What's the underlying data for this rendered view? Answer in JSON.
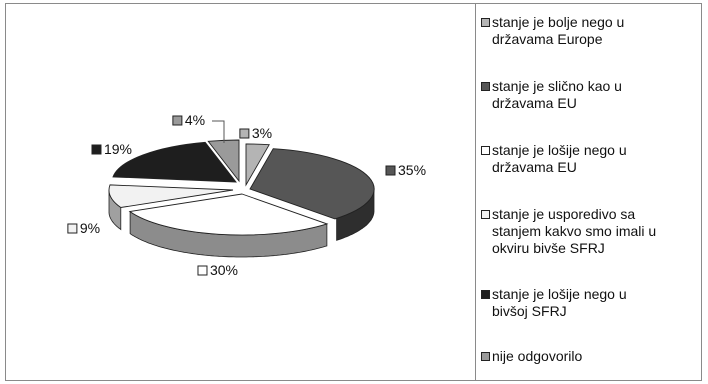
{
  "chart_data": {
    "type": "pie",
    "style": "3d-exploded",
    "legend_position": "right",
    "slices": [
      {
        "label": "stanje je bolje nego u\ndržavama Europe",
        "value": 3,
        "value_label": "3%",
        "color": "#b4b4b4",
        "side": "#8a8a8a"
      },
      {
        "label": "stanje je slično kao u\ndržavama EU",
        "value": 35,
        "value_label": "35%",
        "color": "#565656",
        "side": "#2e2e2e"
      },
      {
        "label": "stanje je lošije nego u\ndržavama  EU",
        "value": 30,
        "value_label": "30%",
        "color": "#ffffff",
        "side": "#8c8c8c"
      },
      {
        "label": "stanje je usporedivo sa\nstanjem kakvo smo imali u\nokviru bivše SFRJ",
        "value": 9,
        "value_label": "9%",
        "color": "#f2f2f2",
        "side": "#a0a0a0"
      },
      {
        "label": "stanje je lošije nego u\nbivšoj SFRJ",
        "value": 19,
        "value_label": "19%",
        "color": "#1e1e1e",
        "side": "#0c0c0c"
      },
      {
        "label": "nije odgovorilo",
        "value": 4,
        "value_label": "4%",
        "color": "#9a9a9a",
        "side": "#6c6c6c"
      }
    ]
  }
}
